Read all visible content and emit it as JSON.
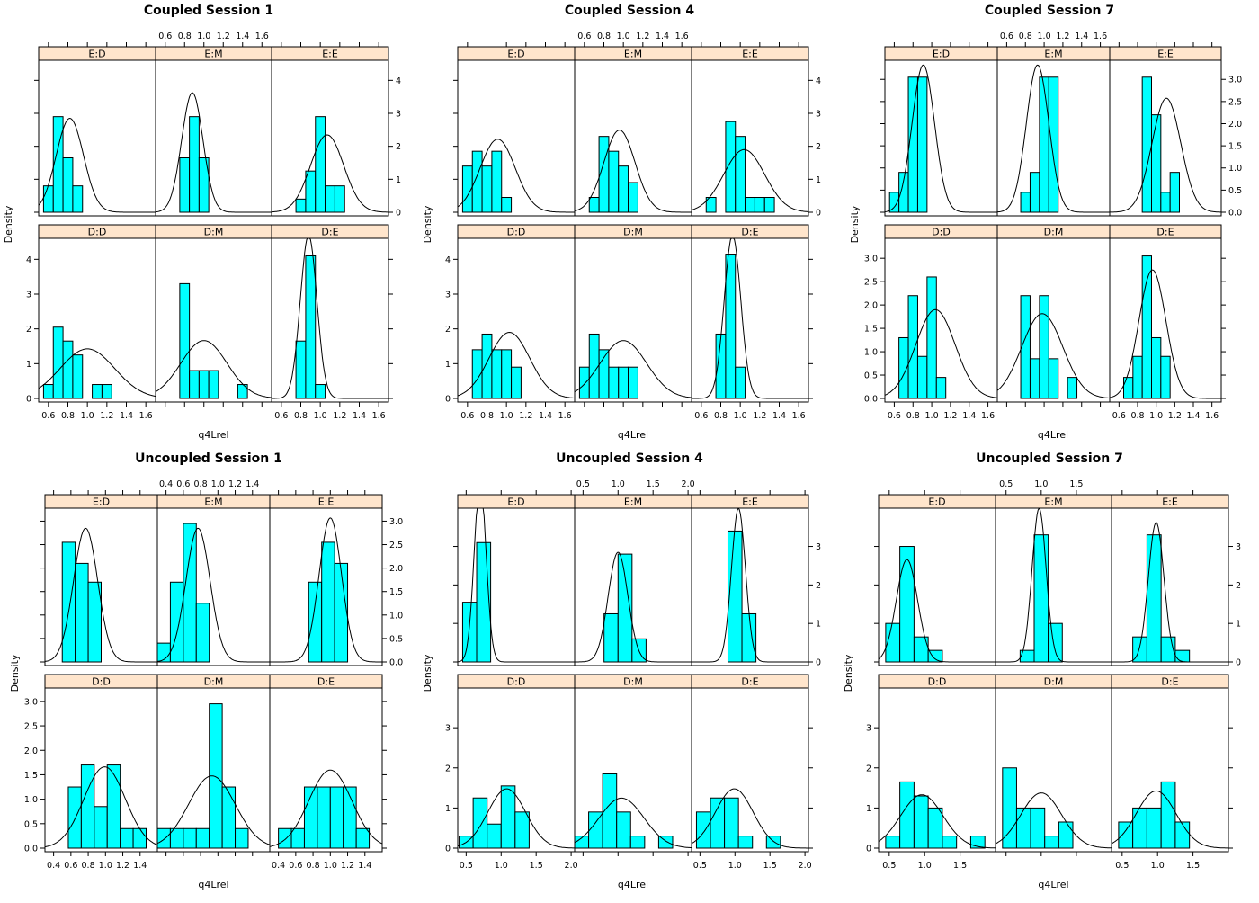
{
  "figure": {
    "strip_color": "#ffe5cc",
    "bar_color": "#00ffff",
    "line_color": "#000000"
  },
  "chart_data": [
    {
      "type": "bar",
      "title": "Coupled Session 1",
      "xlabel": "q4Lrel",
      "ylabel": "Density",
      "xlim": [
        0.5,
        1.7
      ],
      "ylim": [
        0,
        4.5
      ],
      "xticks": [
        0.6,
        0.8,
        1.0,
        1.2,
        1.4,
        1.6
      ],
      "xtick_labels": [
        "0.6",
        "0.8",
        "1.0",
        "1.2",
        "1.4",
        "1.6"
      ],
      "yticks": [
        0,
        1,
        2,
        3,
        4
      ],
      "ytick_labels": [
        "0",
        "1",
        "2",
        "3",
        "4"
      ],
      "bin_width": 0.1,
      "panels": [
        {
          "label": "E:D",
          "bin_start": 0.55,
          "values": [
            0.8,
            2.9,
            1.65,
            0.8
          ],
          "curve": {
            "mean": 0.82,
            "sd": 0.14
          }
        },
        {
          "label": "E:M",
          "bin_start": 0.75,
          "values": [
            1.65,
            2.9,
            1.65
          ],
          "curve": {
            "mean": 0.88,
            "sd": 0.11
          }
        },
        {
          "label": "E:E",
          "bin_start": 0.75,
          "values": [
            0.4,
            1.25,
            2.9,
            0.8,
            0.8
          ],
          "curve": {
            "mean": 1.07,
            "sd": 0.17
          }
        },
        {
          "label": "D:D",
          "bin_start": 0.55,
          "values": [
            0.4,
            2.05,
            1.65,
            1.25,
            0,
            0.4,
            0.4
          ],
          "curve": {
            "mean": 1.0,
            "sd": 0.28
          }
        },
        {
          "label": "D:M",
          "bin_start": 0.75,
          "values": [
            3.3,
            0.8,
            0.8,
            0.8,
            0,
            0,
            0.4
          ],
          "curve": {
            "mean": 1.0,
            "sd": 0.24
          }
        },
        {
          "label": "D:E",
          "bin_start": 0.75,
          "values": [
            1.65,
            4.1,
            0.4
          ],
          "curve": {
            "mean": 0.88,
            "sd": 0.085
          }
        }
      ]
    },
    {
      "type": "bar",
      "title": "Coupled Session 4",
      "xlabel": "q4Lrel",
      "ylabel": "Density",
      "xlim": [
        0.5,
        1.7
      ],
      "ylim": [
        0,
        4.5
      ],
      "xticks": [
        0.6,
        0.8,
        1.0,
        1.2,
        1.4,
        1.6
      ],
      "xtick_labels": [
        "0.6",
        "0.8",
        "1.0",
        "1.2",
        "1.4",
        "1.6"
      ],
      "yticks": [
        0,
        1,
        2,
        3,
        4
      ],
      "ytick_labels": [
        "0",
        "1",
        "2",
        "3",
        "4"
      ],
      "bin_width": 0.1,
      "panels": [
        {
          "label": "E:D",
          "bin_start": 0.55,
          "values": [
            1.4,
            1.85,
            1.4,
            1.85,
            0.45
          ],
          "curve": {
            "mean": 0.91,
            "sd": 0.18
          }
        },
        {
          "label": "E:M",
          "bin_start": 0.65,
          "values": [
            0.45,
            2.3,
            1.85,
            1.4,
            0.9
          ],
          "curve": {
            "mean": 0.96,
            "sd": 0.16
          }
        },
        {
          "label": "E:E",
          "bin_start": 0.65,
          "values": [
            0.45,
            0,
            2.75,
            2.3,
            0.45,
            0.45,
            0.45
          ],
          "curve": {
            "mean": 1.04,
            "sd": 0.21
          }
        },
        {
          "label": "D:D",
          "bin_start": 0.65,
          "values": [
            1.4,
            1.85,
            1.4,
            1.4,
            0.9
          ],
          "curve": {
            "mean": 1.03,
            "sd": 0.21
          }
        },
        {
          "label": "D:M",
          "bin_start": 0.55,
          "values": [
            0.9,
            1.85,
            1.4,
            0.9,
            0.9,
            0.9
          ],
          "curve": {
            "mean": 1.0,
            "sd": 0.24
          }
        },
        {
          "label": "D:E",
          "bin_start": 0.75,
          "values": [
            1.85,
            4.15,
            0.9
          ],
          "curve": {
            "mean": 0.92,
            "sd": 0.085
          }
        }
      ]
    },
    {
      "type": "bar",
      "title": "Coupled Session 7",
      "xlabel": "q4Lrel",
      "ylabel": "Density",
      "xlim": [
        0.5,
        1.7
      ],
      "ylim": [
        0,
        3.35
      ],
      "xticks": [
        0.6,
        0.8,
        1.0,
        1.2,
        1.4,
        1.6
      ],
      "xtick_labels": [
        "0.6",
        "0.8",
        "1.0",
        "1.2",
        "1.4",
        "1.6"
      ],
      "yticks": [
        0,
        0.5,
        1.0,
        1.5,
        2.0,
        2.5,
        3.0
      ],
      "ytick_labels": [
        "0.0",
        "0.5",
        "1.0",
        "1.5",
        "2.0",
        "2.5",
        "3.0"
      ],
      "bin_width": 0.1,
      "panels": [
        {
          "label": "E:D",
          "bin_start": 0.55,
          "values": [
            0.45,
            0.9,
            3.05,
            3.05
          ],
          "curve": {
            "mean": 0.91,
            "sd": 0.12
          }
        },
        {
          "label": "E:M",
          "bin_start": 0.75,
          "values": [
            0.45,
            0.9,
            3.05,
            3.05
          ],
          "curve": {
            "mean": 0.93,
            "sd": 0.12
          }
        },
        {
          "label": "E:E",
          "bin_start": 0.85,
          "values": [
            3.05,
            2.2,
            0.45,
            0.9
          ],
          "curve": {
            "mean": 1.11,
            "sd": 0.155
          }
        },
        {
          "label": "D:D",
          "bin_start": 0.65,
          "values": [
            1.3,
            2.2,
            0.9,
            2.6,
            0.45
          ],
          "curve": {
            "mean": 1.04,
            "sd": 0.21
          }
        },
        {
          "label": "D:M",
          "bin_start": 0.75,
          "values": [
            2.2,
            0.85,
            2.2,
            0.85,
            0,
            0.45
          ],
          "curve": {
            "mean": 0.98,
            "sd": 0.22
          }
        },
        {
          "label": "D:E",
          "bin_start": 0.65,
          "values": [
            0.45,
            0.9,
            3.05,
            1.3,
            0.9
          ],
          "curve": {
            "mean": 0.96,
            "sd": 0.145
          }
        }
      ]
    },
    {
      "type": "bar",
      "title": "Uncoupled Session 1",
      "xlabel": "q4Lrel",
      "ylabel": "Density",
      "xlim": [
        0.3,
        1.6
      ],
      "ylim": [
        0,
        3.2
      ],
      "xticks": [
        0.4,
        0.6,
        0.8,
        1.0,
        1.2,
        1.4
      ],
      "xtick_labels": [
        "0.4",
        "0.6",
        "0.8",
        "1.0",
        "1.2",
        "1.4"
      ],
      "yticks": [
        0,
        0.5,
        1.0,
        1.5,
        2.0,
        2.5,
        3.0
      ],
      "ytick_labels": [
        "0.0",
        "0.5",
        "1.0",
        "1.5",
        "2.0",
        "2.5",
        "3.0"
      ],
      "bin_width": 0.15,
      "panels": [
        {
          "label": "E:D",
          "bin_start": 0.5,
          "values": [
            2.55,
            2.1,
            1.7
          ],
          "curve": {
            "mean": 0.77,
            "sd": 0.14
          }
        },
        {
          "label": "E:M",
          "bin_start": 0.3,
          "values": [
            0.4,
            1.7,
            2.95,
            1.25
          ],
          "curve": {
            "mean": 0.77,
            "sd": 0.14
          }
        },
        {
          "label": "E:E",
          "bin_start": 0.75,
          "values": [
            1.7,
            2.55,
            2.1
          ],
          "curve": {
            "mean": 1.0,
            "sd": 0.13
          }
        },
        {
          "label": "D:D",
          "bin_start": 0.57,
          "values": [
            1.25,
            1.7,
            0.85,
            1.7,
            0.4,
            0.4
          ],
          "curve": {
            "mean": 0.99,
            "sd": 0.24
          }
        },
        {
          "label": "D:M",
          "bin_start": 0.3,
          "values": [
            0.4,
            0.4,
            0.4,
            0.4,
            2.95,
            1.25,
            0.4
          ],
          "curve": {
            "mean": 0.93,
            "sd": 0.27
          }
        },
        {
          "label": "D:E",
          "bin_start": 0.4,
          "values": [
            0.4,
            0.4,
            1.25,
            1.25,
            1.25,
            1.25,
            0.4
          ],
          "curve": {
            "mean": 1.0,
            "sd": 0.25
          }
        }
      ]
    },
    {
      "type": "bar",
      "title": "Uncoupled Session 4",
      "xlabel": "q4Lrel",
      "ylabel": "Density",
      "xlim": [
        0.38,
        2.05
      ],
      "ylim": [
        0,
        3.9
      ],
      "xticks": [
        0.5,
        1.0,
        1.5,
        2.0
      ],
      "xtick_labels": [
        "0.5",
        "1.0",
        "1.5",
        "2.0"
      ],
      "yticks": [
        0,
        1,
        2,
        3
      ],
      "ytick_labels": [
        "0",
        "1",
        "2",
        "3"
      ],
      "bin_width": 0.2,
      "panels": [
        {
          "label": "E:D",
          "bin_start": 0.45,
          "values": [
            1.55,
            3.1
          ],
          "curve": {
            "mean": 0.7,
            "sd": 0.085
          }
        },
        {
          "label": "E:M",
          "bin_start": 0.8,
          "values": [
            1.25,
            2.8,
            0.6
          ],
          "curve": {
            "mean": 1.0,
            "sd": 0.14
          }
        },
        {
          "label": "E:E",
          "bin_start": 0.9,
          "values": [
            3.4,
            1.25
          ],
          "curve": {
            "mean": 1.05,
            "sd": 0.1
          }
        },
        {
          "label": "D:D",
          "bin_start": 0.4,
          "values": [
            0.3,
            1.25,
            0.6,
            1.55,
            0.9
          ],
          "curve": {
            "mean": 1.08,
            "sd": 0.27
          }
        },
        {
          "label": "D:M",
          "bin_start": 0.38,
          "values": [
            0.3,
            0.9,
            1.85,
            0.9,
            0.3,
            0,
            0.3
          ],
          "curve": {
            "mean": 1.05,
            "sd": 0.32
          }
        },
        {
          "label": "D:E",
          "bin_start": 0.45,
          "values": [
            0.9,
            1.25,
            1.25,
            0.3,
            0,
            0.3
          ],
          "curve": {
            "mean": 0.99,
            "sd": 0.27
          }
        }
      ]
    },
    {
      "type": "bar",
      "title": "Uncoupled Session 7",
      "xlabel": "q4Lrel",
      "ylabel": "Density",
      "xlim": [
        0.35,
        2.0
      ],
      "ylim": [
        0,
        3.9
      ],
      "xticks": [
        0.5,
        1.0,
        1.5
      ],
      "xtick_labels": [
        "0.5",
        "1.0",
        "1.5"
      ],
      "yticks": [
        0,
        1,
        2,
        3
      ],
      "ytick_labels": [
        "0",
        "1",
        "2",
        "3"
      ],
      "bin_width": 0.2,
      "panels": [
        {
          "label": "E:D",
          "bin_start": 0.45,
          "values": [
            1.0,
            3.0,
            0.65,
            0.3
          ],
          "curve": {
            "mean": 0.75,
            "sd": 0.15
          }
        },
        {
          "label": "E:M",
          "bin_start": 0.7,
          "values": [
            0.3,
            3.3,
            1.0
          ],
          "curve": {
            "mean": 0.97,
            "sd": 0.1
          }
        },
        {
          "label": "E:E",
          "bin_start": 0.65,
          "values": [
            0.65,
            3.3,
            0.65,
            0.3
          ],
          "curve": {
            "mean": 0.98,
            "sd": 0.11
          }
        },
        {
          "label": "D:D",
          "bin_start": 0.45,
          "values": [
            0.3,
            1.65,
            1.3,
            1.0,
            0.3,
            0,
            0.3
          ],
          "curve": {
            "mean": 0.96,
            "sd": 0.3
          }
        },
        {
          "label": "D:M",
          "bin_start": 0.45,
          "values": [
            2.0,
            1.0,
            1.0,
            0.3,
            0.65
          ],
          "curve": {
            "mean": 1.0,
            "sd": 0.29
          }
        },
        {
          "label": "D:E",
          "bin_start": 0.45,
          "values": [
            0.65,
            1.0,
            1.0,
            1.65,
            0.65
          ],
          "curve": {
            "mean": 0.98,
            "sd": 0.28
          }
        }
      ]
    }
  ]
}
